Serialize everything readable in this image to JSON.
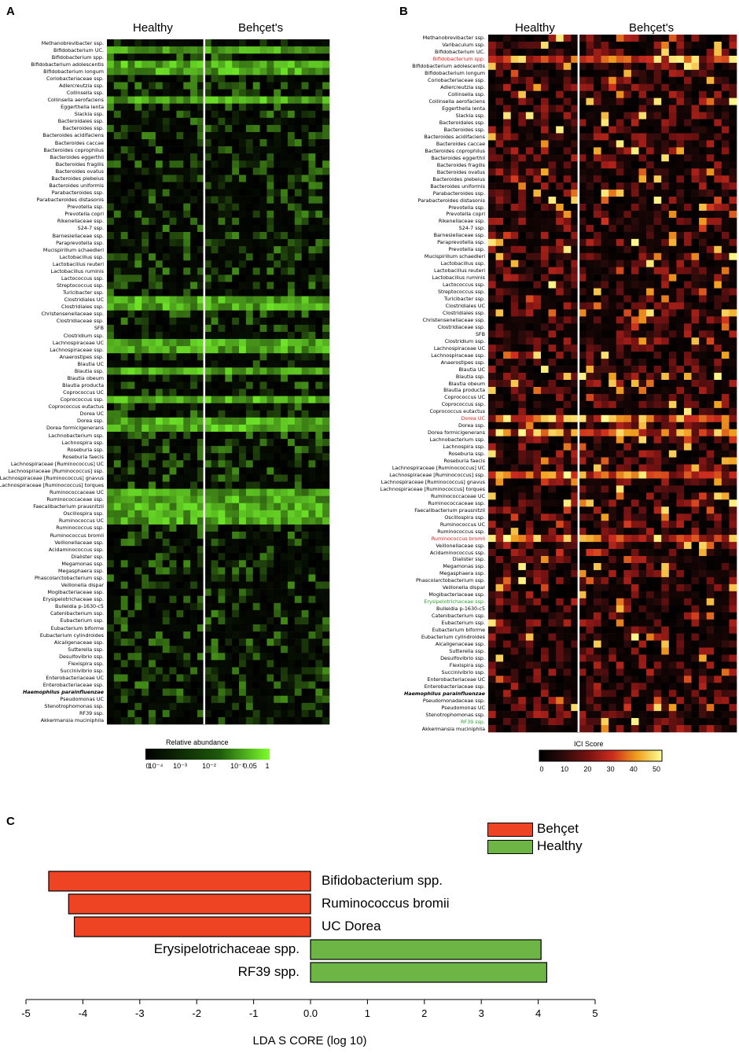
{
  "panel_a": {
    "letter": "A",
    "groups": [
      "Healthy",
      "Behçet's"
    ],
    "legend_title": "Relative abundance",
    "legend_ticks": [
      "0",
      "10⁻⁴",
      "10⁻³",
      "10⁻²",
      "10⁻¹",
      "0.05",
      "1"
    ],
    "rows": [
      "Methanobrevibacter ssp.",
      "Bifidobacterium UC.",
      "Bifidobacterium spp.",
      "Bifidobacterium adolescentis",
      "Bifidobacterium longum",
      "Coriobacteriaceae ssp.",
      "Adlercreutzia ssp.",
      "Collinsella ssp.",
      "Collinsella aerofaciens",
      "Eggerthella lenta",
      "Slackia ssp.",
      "Bacteroidales ssp.",
      "Bacteroides ssp.",
      "Bacteroides acidifaciens",
      "Bacteroides caccae",
      "Bacteroides coprophilus",
      "Bacteroides eggerthii",
      "Bacteroides fragilis",
      "Bacteroides ovatus",
      "Bacteroides plebeius",
      "Bacteroides uniformis",
      "Parabacteroides ssp.",
      "Parabacteroides distasonis",
      "Prevotella ssp.",
      "Prevotella copri",
      "Rikenellaceae ssp.",
      "S24-7 ssp.",
      "Barnesiellaceae ssp.",
      "Paraprevotella ssp.",
      "Mucispirillum schaedleri",
      "Lactobacillus ssp.",
      "Lactobacillus reuteri",
      "Lactobacillus ruminis",
      "Lactococcus ssp.",
      "Streptococcus ssp.",
      "Turicibacter ssp.",
      "Clostridiales UC",
      "Clostridiales ssp.",
      "Christensenellaceae ssp.",
      "Clostridiaceae ssp.",
      "SFB",
      "Clostridium ssp.",
      "Lachnospiraceae UC",
      "Lachnospiraceae ssp.",
      "Anaerostipes ssp.",
      "Blautia UC",
      "Blautia ssp.",
      "Blautia obeum",
      "Blautia producta",
      "Coprococcus UC",
      "Coprococcus ssp.",
      "Coprococcus eutactus",
      "Dorea UC",
      "Dorea ssp.",
      "Dorea formicigenerans",
      "Lachnobacterium ssp.",
      "Lachnospira ssp.",
      "Roseburia ssp.",
      "Roseburia faecis",
      "Lachnospiraceae [Ruminococcus] UC",
      "Lachnospiraceae [Ruminococcus] ssp.",
      "Lachnospiraceae [Ruminococcus] gnavus",
      "Lachnospiraceae [Ruminococcus] torques",
      "Ruminococcaceae UC",
      "Ruminococcaceae ssp.",
      "Faecalibacterium prausnitzii",
      "Oscillospira ssp.",
      "Ruminococcus UC",
      "Ruminococcus ssp.",
      "Ruminococcus bromii",
      "Veillonellaceae ssp.",
      "Acidaminococcus ssp.",
      "Dialister ssp.",
      "Megamonas ssp.",
      "Megasphaera ssp.",
      "Phascolarctobacterium ssp.",
      "Veillonella dispar",
      "Mogibacteriaceae ssp.",
      "Erysipelotrichaceae ssp.",
      "Bulleidia p-1630-c5",
      "Catenibacterium ssp.",
      "Eubacterium ssp.",
      "Eubacterium biforme",
      "Eubacterium cylindroides",
      "Alcaligenaceae ssp.",
      "Sutterella ssp.",
      "Desulfovibrio ssp.",
      "Flexispira ssp.",
      "Succinivibrio ssp.",
      "Enterobacteriaceae UC",
      "Enterobacteriaceae ssp.",
      "Haemophilus parainfluenzae",
      "Pseudomonas UC",
      "Stenotrophomonas ssp.",
      "RF39 ssp.",
      "Akkermansia muciniphila"
    ]
  },
  "panel_b": {
    "letter": "B",
    "groups": [
      "Healthy",
      "Behçet's"
    ],
    "legend_title": "ICI Score",
    "legend_ticks": [
      "0",
      "10",
      "20",
      "30",
      "40",
      "50"
    ],
    "rows": [
      "Methanobrevibacter ssp.",
      "Varibaculum ssp.",
      "Bifidobacterium UC.",
      "Bifidobacterium spp.",
      "Bifidobacterium adolescentis",
      "Bifidobacterium longum",
      "Coriobacteriaceae ssp.",
      "Adlercreutzia ssp.",
      "Collinsella ssp.",
      "Collinsella aerofaciens",
      "Eggerthella lenta",
      "Slackia ssp.",
      "Bacteroidales ssp.",
      "Bacteroides ssp.",
      "Bacteroides acidifaciens",
      "Bacteroides caccae",
      "Bacteroides coprophilus",
      "Bacteroides eggerthii",
      "Bacteroides fragilis",
      "Bacteroides ovatus",
      "Bacteroides plebeius",
      "Bacteroides uniformis",
      "Parabacteroides ssp.",
      "Parabacteroides distasonis",
      "Prevotella ssp.",
      "Prevotella copri",
      "Rikenellaceae ssp.",
      "S24-7 ssp.",
      "Barnesiellaceae ssp.",
      "Paraprevotella ssp.",
      "Prevotella ssp.",
      "Mucispirillum schaedleri",
      "Lactobacillus ssp.",
      "Lactobacillus reuteri",
      "Lactobacillus ruminis",
      "Lactococcus ssp.",
      "Streptococcus ssp.",
      "Turicibacter ssp.",
      "Clostridiales UC",
      "Clostridiales ssp.",
      "Christensenellaceae ssp.",
      "Clostridiaceae ssp.",
      "SFB",
      "Clostridium ssp.",
      "Lachnospiraceae UC",
      "Lachnospiraceae ssp.",
      "Anaerostipes ssp.",
      "Blautia UC",
      "Blautia ssp.",
      "Blautia obeum",
      "Blautia producta",
      "Coprococcus UC",
      "Coprococcus ssp.",
      "Coprococcus eutactus",
      "Dorea UC",
      "Dorea ssp.",
      "Dorea formicigenerans",
      "Lachnobacterium ssp.",
      "Lachnospira ssp.",
      "Roseburia ssp.",
      "Roseburia faecis",
      "Lachnospiraceae [Ruminococcus] UC",
      "Lachnospiraceae [Ruminococcus] ssp.",
      "Lachnospiraceae [Ruminococcus] gnavus",
      "Lachnospiraceae [Ruminococcus] torques",
      "Ruminococcaceae UC",
      "Ruminococcaceae ssp.",
      "Faecalibacterium prausnitzii",
      "Oscillospira ssp.",
      "Ruminococcus UC",
      "Ruminococcus ssp.",
      "Ruminococcus bromii",
      "Veillonellaceae ssp.",
      "Acidaminococcus ssp.",
      "Dialister ssp.",
      "Megamonas ssp.",
      "Megasphaera ssp.",
      "Phascolarctobacterium ssp.",
      "Veillonella dispar",
      "Mogibacteriaceae ssp.",
      "Erysipelotrichaceae ssp.",
      "Bulleidia p-1630-c5",
      "Catenibacterium ssp.",
      "Eubacterium ssp.",
      "Eubacterium biforme",
      "Eubacterium cylindroides",
      "Alcaligenaceae ssp.",
      "Sutterella ssp.",
      "Desulfovibrio ssp.",
      "Flexispira ssp.",
      "Succinivibrio ssp.",
      "Enterobacteriaceae UC",
      "Enterobacteriaceae ssp.",
      "Haemophilus parainfluenzae",
      "Pseudomonadaceae ssp.",
      "Pseudomonas UC",
      "Stenotrophomonas ssp.",
      "RF39 ssp.",
      "Akkermansia muciniphila"
    ],
    "red_rows": [
      "Bifidobacterium spp.",
      "Dorea UC",
      "Ruminococcus bromii"
    ],
    "green_rows": [
      "Erysipelotrichaceae ssp.",
      "RF39 ssp."
    ]
  },
  "panel_c": {
    "letter": "C",
    "xlabel": "LDA S CORE (log 10)",
    "legend": [
      {
        "name": "Behçet",
        "color": "#ee4423"
      },
      {
        "name": "Healthy",
        "color": "#6db645"
      }
    ]
  },
  "chart_data": [
    {
      "type": "heatmap",
      "columns_healthy": 14,
      "columns_behcet": 18,
      "groups": [
        "Healthy",
        "Behçet's"
      ],
      "colorscale": [
        "#000000",
        "#7dff2a"
      ],
      "legend_ticks": [
        "0",
        "10⁻⁴",
        "10⁻³",
        "10⁻²",
        "10⁻¹",
        "0.05",
        "1"
      ],
      "strong_rows": [
        "Bifidobacterium UC.",
        "Bifidobacterium adolescentis",
        "Bifidobacterium longum",
        "Collinsella aerofaciens",
        "Clostridiales UC",
        "Clostridiales ssp.",
        "Lachnospiraceae UC",
        "Lachnospiraceae ssp.",
        "Blautia ssp.",
        "Coprococcus ssp.",
        "Dorea ssp.",
        "Dorea formicigenerans",
        "Ruminococcaceae UC",
        "Ruminococcaceae ssp.",
        "Faecalibacterium prausnitzii",
        "Oscillospira ssp.",
        "Ruminococcus UC"
      ]
    },
    {
      "type": "heatmap",
      "columns_healthy": 12,
      "columns_behcet": 21,
      "groups": [
        "Healthy",
        "Behçet's"
      ],
      "colorscale": [
        "#000000",
        "#7a1010",
        "#d42a1c",
        "#f0a020",
        "#ffff80"
      ],
      "legend_ticks": [
        "0",
        "10",
        "20",
        "30",
        "40",
        "50"
      ],
      "range": [
        0,
        55
      ]
    },
    {
      "type": "bar",
      "orientation": "horizontal",
      "categories": [
        "Bifidobacterium  spp.",
        "Ruminococcus bromii",
        "UC Dorea",
        "Erysipelotrichaceae    spp.",
        "RF39 spp."
      ],
      "values": [
        -4.6,
        -4.25,
        -4.15,
        4.05,
        4.15
      ],
      "groups": [
        "Behçet",
        "Behçet",
        "Behçet",
        "Healthy",
        "Healthy"
      ],
      "colors": [
        "#ee4423",
        "#ee4423",
        "#ee4423",
        "#6db645",
        "#6db645"
      ],
      "xlim": [
        -5,
        5
      ],
      "xticks": [
        "-5",
        "-4",
        "-3",
        "-2",
        "-1",
        "0.0",
        "1",
        "2",
        "3",
        "4",
        "5"
      ],
      "xlabel": "LDA S CORE (log 10)"
    }
  ]
}
